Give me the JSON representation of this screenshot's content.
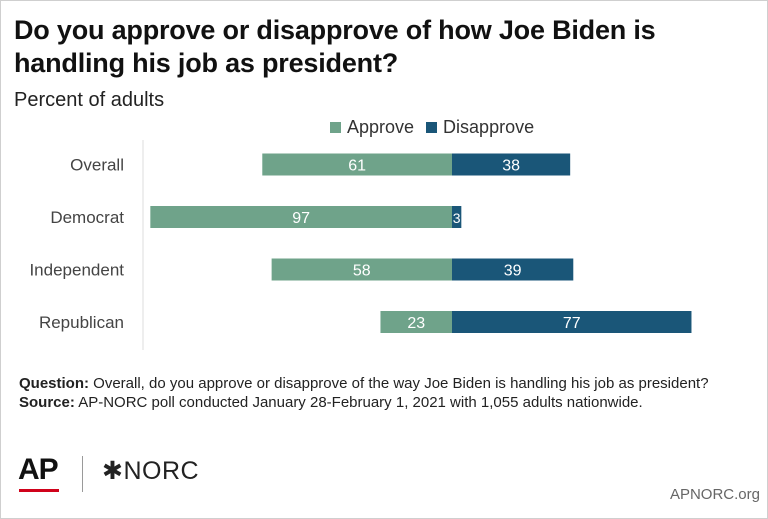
{
  "chart_data": {
    "type": "bar",
    "orientation": "horizontal",
    "stacked": "diverging",
    "title": "Do you approve or disapprove of how Joe Biden is handling his job as president?",
    "subtitle": "Percent of adults",
    "categories": [
      "Overall",
      "Democrat",
      "Independent",
      "Republican"
    ],
    "series": [
      {
        "name": "Approve",
        "values": [
          61,
          97,
          58,
          23
        ],
        "color": "#6fa38a"
      },
      {
        "name": "Disapprove",
        "values": [
          38,
          3,
          39,
          77
        ],
        "color": "#1a5678"
      }
    ],
    "legend": "top",
    "grid": false
  },
  "notes": {
    "question_label": "Question:",
    "question_text": "Overall, do you approve or disapprove of the way Joe Biden is handling his job as president?",
    "source_label": "Source:",
    "source_text": "AP-NORC poll conducted January 28-February 1, 2021 with 1,055 adults nationwide."
  },
  "branding": {
    "ap_logo": "AP",
    "norc_logo": "NORC",
    "norc_icon": "asterisk-icon",
    "website": "APNORC.org"
  }
}
